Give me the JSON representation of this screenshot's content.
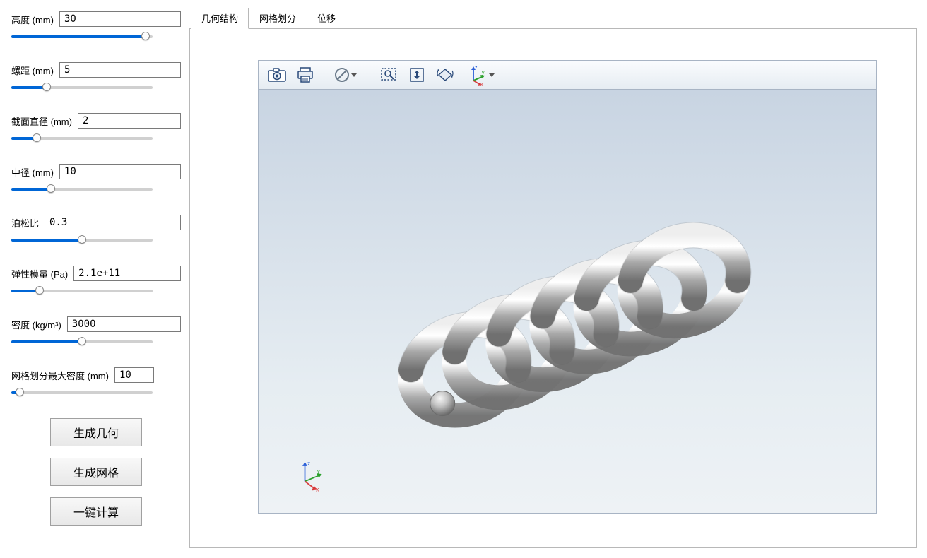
{
  "params": [
    {
      "label": "高度 (mm)",
      "value": "30",
      "slider_fill_pct": 95
    },
    {
      "label": "螺距 (mm)",
      "value": "5",
      "slider_fill_pct": 25
    },
    {
      "label": "截面直径 (mm)",
      "value": "2",
      "slider_fill_pct": 18
    },
    {
      "label": "中径 (mm)",
      "value": "10",
      "slider_fill_pct": 28
    },
    {
      "label": "泊松比",
      "value": "0.3",
      "slider_fill_pct": 50,
      "label_only": true
    },
    {
      "label": "弹性模量 (Pa)",
      "value": "2.1e+11",
      "slider_fill_pct": 20
    },
    {
      "label": "密度 (kg/m³)",
      "value": "3000",
      "slider_fill_pct": 50
    },
    {
      "label": "网格划分最大密度 (mm)",
      "value": "10",
      "slider_fill_pct": 6,
      "short": true
    }
  ],
  "buttons": {
    "gen_geom": "生成几何",
    "gen_mesh": "生成网格",
    "compute": "一键计算"
  },
  "tabs": [
    {
      "label": "几何结构",
      "active": true
    },
    {
      "label": "网格划分",
      "active": false
    },
    {
      "label": "位移",
      "active": false
    }
  ],
  "triad": {
    "x_label": "x",
    "y_label": "y",
    "z_label": "z",
    "x_color": "#d83a3a",
    "y_color": "#2aa02a",
    "z_color": "#2a5fd8"
  },
  "colors": {
    "viewport_grad_top": "#c8d4e2",
    "viewport_grad_bot": "#eef2f5",
    "toolbar_border": "#a8b4c4",
    "spring_body": "#bcbcbc",
    "spring_hilite": "#f4f4f4",
    "spring_shadow": "#6a6a6a"
  },
  "spring": {
    "coils": 6,
    "coil_diameter_mm": 10,
    "wire_diameter_mm": 2,
    "pitch_mm": 5,
    "height_mm": 30
  }
}
